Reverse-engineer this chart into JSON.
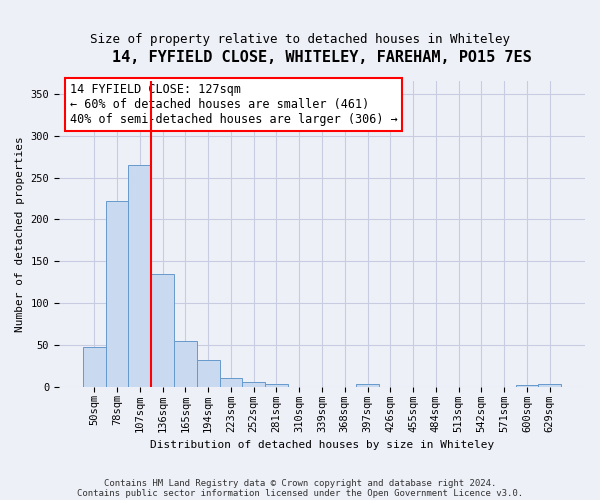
{
  "title": "14, FYFIELD CLOSE, WHITELEY, FAREHAM, PO15 7ES",
  "subtitle": "Size of property relative to detached houses in Whiteley",
  "xlabel": "Distribution of detached houses by size in Whiteley",
  "ylabel": "Number of detached properties",
  "footnote1": "Contains HM Land Registry data © Crown copyright and database right 2024.",
  "footnote2": "Contains public sector information licensed under the Open Government Licence v3.0.",
  "categories": [
    "50sqm",
    "78sqm",
    "107sqm",
    "136sqm",
    "165sqm",
    "194sqm",
    "223sqm",
    "252sqm",
    "281sqm",
    "310sqm",
    "339sqm",
    "368sqm",
    "397sqm",
    "426sqm",
    "455sqm",
    "484sqm",
    "513sqm",
    "542sqm",
    "571sqm",
    "600sqm",
    "629sqm"
  ],
  "values": [
    47,
    222,
    265,
    135,
    54,
    32,
    10,
    6,
    3,
    0,
    0,
    0,
    3,
    0,
    0,
    0,
    0,
    0,
    0,
    2,
    3
  ],
  "bar_color": "#c9d9f0",
  "bar_edge_color": "#6699cc",
  "grid_color": "#c8cce0",
  "background_color": "#eef0f8",
  "red_line_x": 2.5,
  "annotation_line1": "14 FYFIELD CLOSE: 127sqm",
  "annotation_line2": "← 60% of detached houses are smaller (461)",
  "annotation_line3": "40% of semi-detached houses are larger (306) →",
  "ylim": [
    0,
    365
  ],
  "yticks": [
    0,
    50,
    100,
    150,
    200,
    250,
    300,
    350
  ],
  "title_fontsize": 11,
  "subtitle_fontsize": 9,
  "ylabel_fontsize": 8,
  "xlabel_fontsize": 8,
  "tick_fontsize": 7.5,
  "annot_fontsize": 8.5
}
